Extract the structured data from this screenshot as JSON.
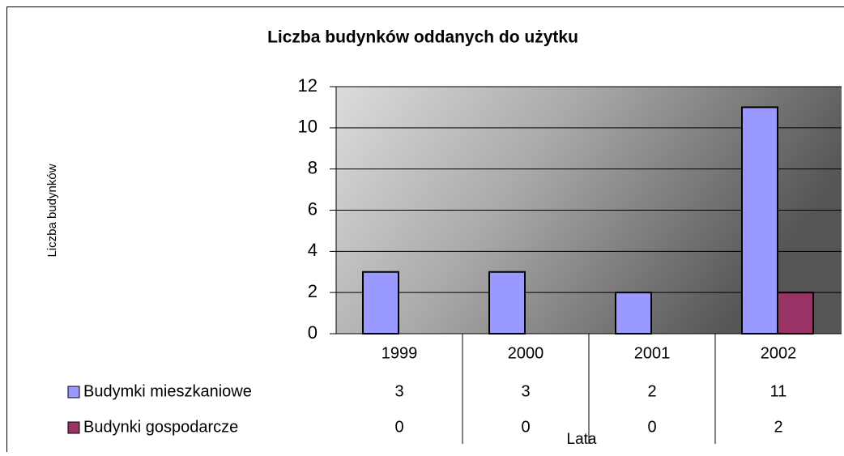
{
  "chart_data": {
    "type": "bar",
    "title": "Liczba budynków oddanych do użytku",
    "x_label": "Lata",
    "y_label": "Liczba budynków",
    "categories": [
      "1999",
      "2000",
      "2001",
      "2002"
    ],
    "series": [
      {
        "name": "Budymki mieszkaniowe",
        "color": "#9999ff",
        "values": [
          3,
          3,
          2,
          11
        ]
      },
      {
        "name": "Budynki gospodarcze",
        "color": "#993366",
        "values": [
          0,
          0,
          0,
          2
        ]
      }
    ],
    "ylim": [
      0,
      12
    ],
    "yticks": [
      0,
      2,
      4,
      6,
      8,
      10,
      12
    ],
    "grid": true
  }
}
